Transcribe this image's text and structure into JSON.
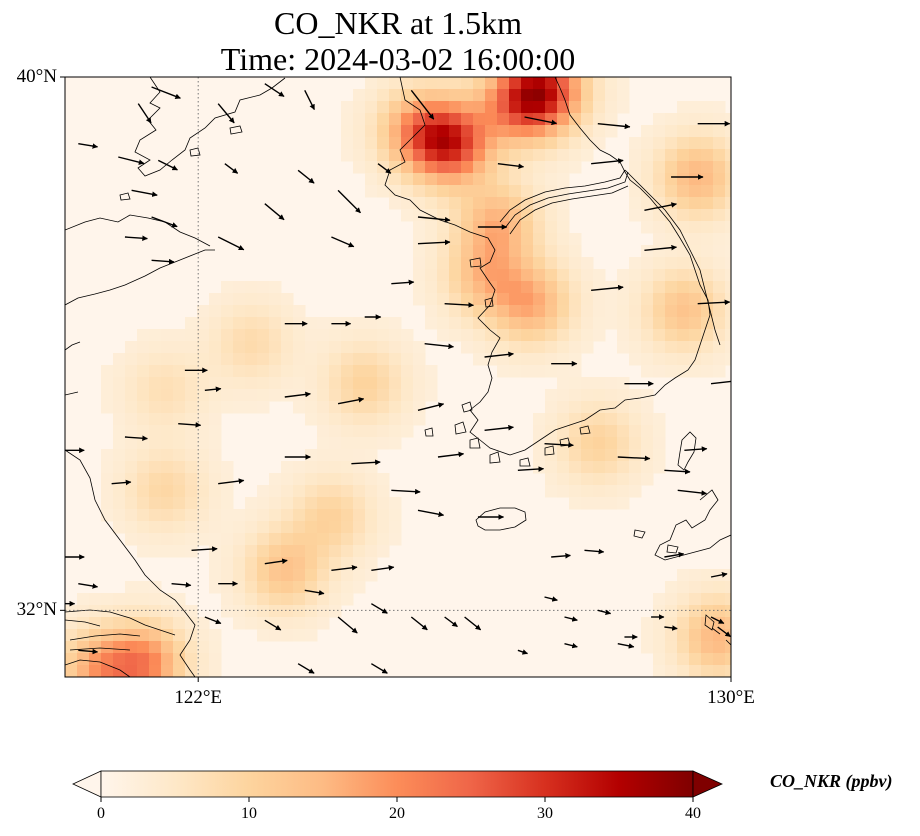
{
  "title_line1": "CO_NKR at 1.5km",
  "title_line2": "Time: 2024-03-02 16:00:00",
  "map": {
    "extent": {
      "lon_min": 120,
      "lon_max": 130,
      "lat_min": 31,
      "lat_max": 40
    },
    "gridlines": {
      "lon": [
        122
      ],
      "lat": [
        32
      ],
      "style": "dotted"
    },
    "lat_ticks": [
      {
        "value": 40,
        "label": "40°N"
      },
      {
        "value": 32,
        "label": "32°N"
      }
    ],
    "lon_ticks": [
      {
        "value": 122,
        "label": "122°E"
      },
      {
        "value": 130,
        "label": "130°E"
      }
    ],
    "colormap": "OrRd",
    "hotspots": [
      {
        "lon": 127.2,
        "lat": 39.8,
        "value": 25
      },
      {
        "lon": 126.8,
        "lat": 39.6,
        "value": 17
      },
      {
        "lon": 125.8,
        "lat": 39.0,
        "value": 26
      },
      {
        "lon": 125.3,
        "lat": 39.2,
        "value": 15
      },
      {
        "lon": 126.5,
        "lat": 37.8,
        "value": 13
      },
      {
        "lon": 127.0,
        "lat": 36.6,
        "value": 14
      },
      {
        "lon": 126.3,
        "lat": 37.0,
        "value": 11
      },
      {
        "lon": 129.5,
        "lat": 38.5,
        "value": 13
      },
      {
        "lon": 129.3,
        "lat": 36.5,
        "value": 11
      },
      {
        "lon": 121.2,
        "lat": 31.2,
        "value": 18
      },
      {
        "lon": 120.5,
        "lat": 31.1,
        "value": 14
      },
      {
        "lon": 123.3,
        "lat": 32.6,
        "value": 11
      },
      {
        "lon": 124.0,
        "lat": 33.4,
        "value": 8
      },
      {
        "lon": 121.5,
        "lat": 33.8,
        "value": 7
      },
      {
        "lon": 124.5,
        "lat": 35.4,
        "value": 8
      },
      {
        "lon": 122.8,
        "lat": 36.0,
        "value": 6
      },
      {
        "lon": 129.8,
        "lat": 31.6,
        "value": 13
      },
      {
        "lon": 128.0,
        "lat": 34.5,
        "value": 8
      },
      {
        "lon": 121.5,
        "lat": 35.3,
        "value": 5
      }
    ],
    "wind_vectors": [
      [
        121.3,
        39.85,
        0.9,
        -0.35
      ],
      [
        121.1,
        39.6,
        0.4,
        -0.6
      ],
      [
        122.3,
        39.6,
        0.5,
        -0.6
      ],
      [
        123.0,
        39.9,
        0.6,
        -0.4
      ],
      [
        123.6,
        39.8,
        0.3,
        -0.6
      ],
      [
        125.2,
        39.8,
        0.7,
        -0.9
      ],
      [
        126.9,
        39.4,
        1.0,
        -0.2
      ],
      [
        128.0,
        39.3,
        1.0,
        -0.1
      ],
      [
        129.5,
        39.3,
        1.0,
        0
      ],
      [
        120.2,
        39.0,
        0.6,
        -0.1
      ],
      [
        120.8,
        38.8,
        0.8,
        -0.2
      ],
      [
        121.4,
        38.75,
        0.6,
        -0.3
      ],
      [
        122.4,
        38.7,
        0.4,
        -0.3
      ],
      [
        123.5,
        38.6,
        0.5,
        -0.4
      ],
      [
        124.7,
        38.7,
        0.4,
        -0.3
      ],
      [
        126.5,
        38.7,
        0.8,
        -0.1
      ],
      [
        127.9,
        38.7,
        1.0,
        0.1
      ],
      [
        129.1,
        38.5,
        1.0,
        0
      ],
      [
        121.0,
        38.3,
        0.8,
        -0.15
      ],
      [
        123.0,
        38.1,
        0.6,
        -0.5
      ],
      [
        124.1,
        38.3,
        0.7,
        -0.7
      ],
      [
        125.3,
        37.9,
        1.0,
        -0.1
      ],
      [
        126.2,
        37.75,
        0.9,
        0
      ],
      [
        128.7,
        38.0,
        1.0,
        0.2
      ],
      [
        120.9,
        37.6,
        0.7,
        -0.05
      ],
      [
        121.3,
        37.9,
        0.8,
        -0.3
      ],
      [
        122.3,
        37.6,
        0.8,
        -0.4
      ],
      [
        124.0,
        37.6,
        0.7,
        -0.3
      ],
      [
        125.3,
        37.5,
        1.0,
        0.05
      ],
      [
        128.7,
        37.4,
        1.0,
        0.1
      ],
      [
        121.3,
        37.25,
        0.7,
        -0.05
      ],
      [
        124.9,
        36.9,
        0.7,
        0.05
      ],
      [
        125.7,
        36.6,
        0.9,
        -0.05
      ],
      [
        127.9,
        36.8,
        1.0,
        0.1
      ],
      [
        129.5,
        36.6,
        1.0,
        0.05
      ],
      [
        123.3,
        36.3,
        0.7,
        0
      ],
      [
        124.0,
        36.3,
        0.6,
        0
      ],
      [
        124.5,
        36.4,
        0.5,
        0
      ],
      [
        125.4,
        36.0,
        0.9,
        -0.1
      ],
      [
        126.3,
        35.8,
        0.9,
        0.1
      ],
      [
        127.3,
        35.7,
        0.8,
        0
      ],
      [
        128.4,
        35.4,
        0.9,
        0
      ],
      [
        129.7,
        35.4,
        0.9,
        0.1
      ],
      [
        121.8,
        35.6,
        0.7,
        0
      ],
      [
        122.1,
        35.3,
        0.5,
        0.05
      ],
      [
        123.3,
        35.2,
        0.8,
        0.1
      ],
      [
        124.1,
        35.1,
        0.8,
        0.15
      ],
      [
        125.3,
        35.0,
        0.8,
        0.2
      ],
      [
        126.3,
        34.7,
        0.9,
        0.1
      ],
      [
        127.2,
        34.5,
        0.9,
        -0.05
      ],
      [
        128.3,
        34.3,
        1.0,
        -0.05
      ],
      [
        129.3,
        34.4,
        0.7,
        0.05
      ],
      [
        120.0,
        34.4,
        0.6,
        0
      ],
      [
        120.9,
        34.6,
        0.7,
        -0.05
      ],
      [
        121.7,
        34.8,
        0.7,
        -0.05
      ],
      [
        123.3,
        34.3,
        0.8,
        0
      ],
      [
        124.3,
        34.2,
        0.9,
        0.05
      ],
      [
        125.6,
        34.3,
        0.8,
        0.1
      ],
      [
        126.8,
        34.1,
        0.8,
        0.05
      ],
      [
        129.0,
        34.1,
        0.8,
        -0.05
      ],
      [
        120.7,
        33.9,
        0.6,
        0.05
      ],
      [
        122.3,
        33.9,
        0.8,
        0.1
      ],
      [
        124.9,
        33.8,
        0.9,
        -0.05
      ],
      [
        125.3,
        33.5,
        0.8,
        -0.15
      ],
      [
        126.2,
        33.4,
        0.8,
        0
      ],
      [
        129.2,
        33.8,
        0.9,
        -0.1
      ],
      [
        120.0,
        32.8,
        0.6,
        0
      ],
      [
        121.9,
        32.9,
        0.8,
        0.05
      ],
      [
        123.0,
        32.7,
        0.7,
        0.1
      ],
      [
        124.0,
        32.6,
        0.8,
        0.1
      ],
      [
        124.6,
        32.6,
        0.7,
        0.1
      ],
      [
        127.3,
        32.8,
        0.6,
        0.05
      ],
      [
        127.8,
        32.9,
        0.6,
        -0.05
      ],
      [
        129.0,
        32.8,
        0.6,
        0.1
      ],
      [
        129.7,
        32.5,
        0.5,
        0.1
      ],
      [
        120.0,
        32.1,
        0.3,
        0
      ],
      [
        120.2,
        32.4,
        0.6,
        -0.1
      ],
      [
        121.6,
        32.4,
        0.6,
        -0.05
      ],
      [
        122.3,
        32.4,
        0.6,
        0
      ],
      [
        123.6,
        32.3,
        0.6,
        -0.1
      ],
      [
        124.6,
        32.1,
        0.5,
        -0.3
      ],
      [
        127.2,
        32.2,
        0.4,
        -0.1
      ],
      [
        128.0,
        32.0,
        0.4,
        -0.1
      ],
      [
        128.8,
        31.9,
        0.4,
        0
      ],
      [
        129.7,
        31.9,
        0.4,
        -0.2
      ],
      [
        120.2,
        31.4,
        0.6,
        -0.05
      ],
      [
        121.9,
        31.0,
        0.6,
        -0.2
      ],
      [
        123.5,
        31.2,
        0.5,
        -0.3
      ],
      [
        124.6,
        31.2,
        0.5,
        -0.3
      ],
      [
        125.7,
        31.9,
        0.4,
        -0.3
      ],
      [
        126.8,
        31.4,
        0.3,
        -0.1
      ],
      [
        127.5,
        31.5,
        0.4,
        -0.1
      ],
      [
        128.3,
        31.5,
        0.5,
        -0.1
      ],
      [
        128.4,
        31.6,
        0.4,
        0
      ],
      [
        129.5,
        31.0,
        0.4,
        -0.3
      ],
      [
        122.1,
        31.9,
        0.5,
        -0.2
      ],
      [
        123.0,
        31.85,
        0.5,
        -0.3
      ],
      [
        124.1,
        31.9,
        0.6,
        -0.5
      ],
      [
        125.2,
        31.9,
        0.5,
        -0.4
      ],
      [
        126.0,
        31.9,
        0.5,
        -0.4
      ],
      [
        127.5,
        31.9,
        0.4,
        -0.1
      ],
      [
        129.0,
        31.75,
        0.4,
        -0.05
      ],
      [
        129.8,
        31.75,
        0.4,
        -0.3
      ]
    ]
  },
  "colorbar": {
    "label": "CO_NKR (ppbv)",
    "min": 0,
    "max": 40,
    "ticks": [
      0,
      10,
      20,
      30,
      40
    ],
    "stops": [
      "#fff5eb",
      "#fee8c8",
      "#fdd49e",
      "#fdbb84",
      "#fc8d59",
      "#ef6548",
      "#d7301f",
      "#b30000",
      "#7f0000"
    ]
  }
}
